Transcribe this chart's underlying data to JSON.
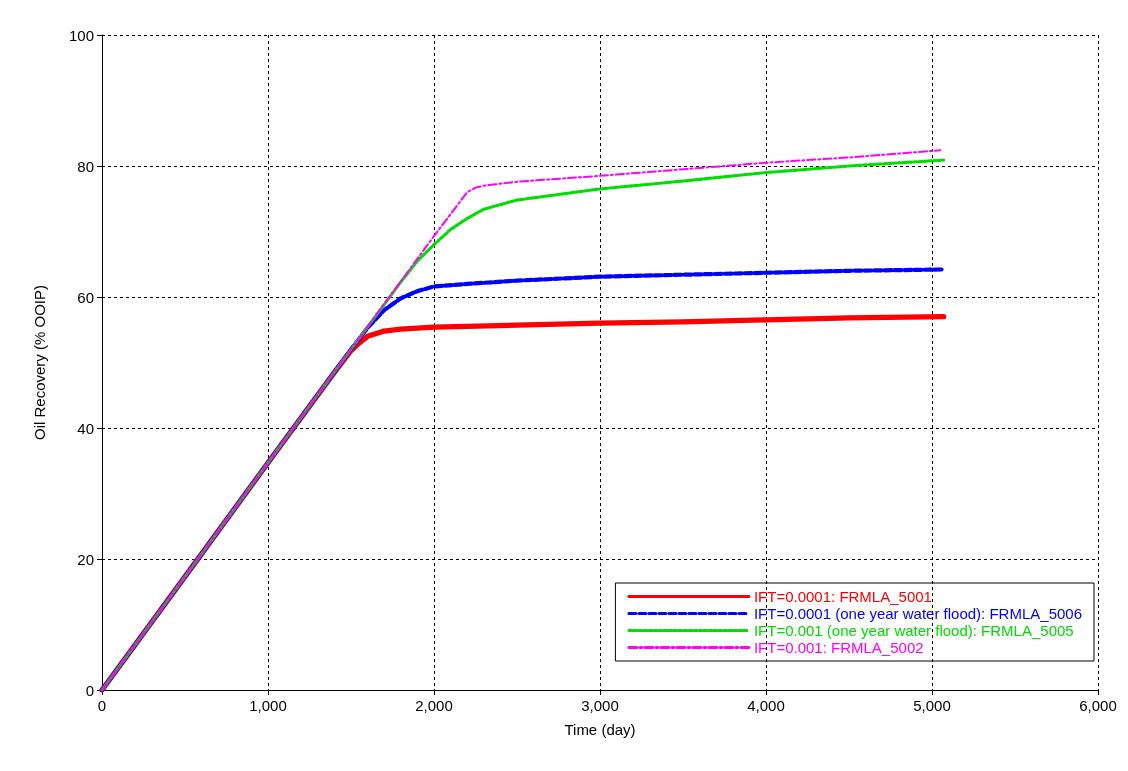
{
  "chart_data": {
    "type": "line",
    "xlabel": "Time (day)",
    "ylabel": "Oil Recovery (% OOIP)",
    "xlim": [
      0,
      6000
    ],
    "xticks": [
      {
        "value": 0,
        "label": "0"
      },
      {
        "value": 1000,
        "label": "1,000"
      },
      {
        "value": 2000,
        "label": "2,000"
      },
      {
        "value": 3000,
        "label": "3,000"
      },
      {
        "value": 4000,
        "label": "4,000"
      },
      {
        "value": 5000,
        "label": "5,000"
      },
      {
        "value": 6000,
        "label": "6,000"
      }
    ],
    "ylim": [
      0,
      100
    ],
    "yticks": [
      0,
      20,
      40,
      60,
      80,
      100
    ],
    "grid": true,
    "legend": "bottom right",
    "marker": "none",
    "series": [
      {
        "name": "IFT=0.0001: FRMLA_5001",
        "color": "#ff0000",
        "line_style": "solid",
        "x": [
          0,
          500,
          1000,
          1400,
          1500,
          1550,
          1600,
          1700,
          1800,
          2000,
          2500,
          3000,
          3500,
          4000,
          4500,
          5070
        ],
        "values": [
          0,
          17.3,
          34.7,
          48.5,
          51.8,
          53,
          54,
          54.8,
          55.1,
          55.4,
          55.7,
          56,
          56.2,
          56.5,
          56.8,
          57
        ]
      },
      {
        "name": "IFT=0.0001 (one year water flood): FRMLA_5006",
        "color": "#0000ff",
        "line_style": "dashed",
        "x": [
          0,
          500,
          1000,
          1500,
          1600,
          1700,
          1800,
          1900,
          2000,
          2200,
          2500,
          3000,
          3500,
          4000,
          4500,
          5070
        ],
        "values": [
          0,
          17.3,
          34.7,
          52,
          55.3,
          58,
          59.8,
          60.9,
          61.6,
          62,
          62.5,
          63.1,
          63.4,
          63.7,
          64,
          64.2
        ]
      },
      {
        "name": "IFT=0.001 (one year water flood): FRMLA_5005",
        "color": "#00dd00",
        "line_style": "dotted",
        "x": [
          0,
          500,
          1000,
          1500,
          1800,
          1900,
          2000,
          2100,
          2200,
          2300,
          2500,
          3000,
          3500,
          4000,
          4500,
          5070
        ],
        "values": [
          0,
          17.3,
          34.7,
          52,
          62.3,
          65.5,
          68,
          70.3,
          72,
          73.4,
          74.8,
          76.5,
          77.7,
          79,
          80,
          80.9
        ]
      },
      {
        "name": "IFT=0.001: FRMLA_5002",
        "color": "#ff00ff",
        "line_style": "dashdot",
        "x": [
          0,
          500,
          1000,
          1500,
          2000,
          2200,
          2250,
          2300,
          2500,
          3000,
          3500,
          4000,
          4500,
          5050
        ],
        "values": [
          0,
          17.3,
          34.7,
          52,
          69.3,
          76,
          76.7,
          77,
          77.6,
          78.5,
          79.5,
          80.5,
          81.3,
          82.4
        ]
      }
    ]
  }
}
